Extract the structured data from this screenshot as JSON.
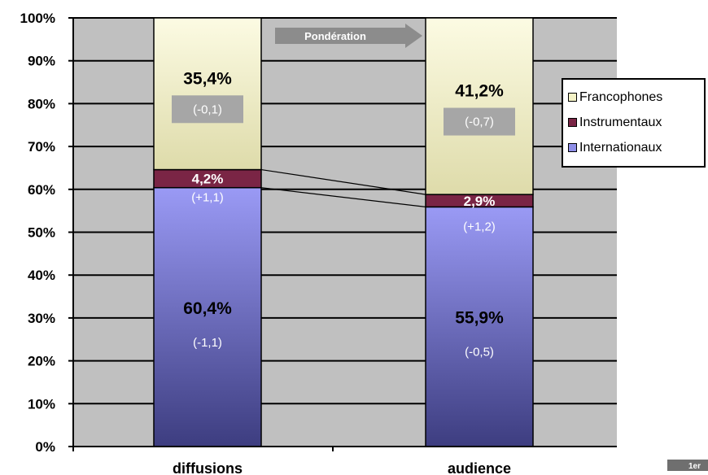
{
  "chart_data": {
    "type": "bar",
    "stacked": true,
    "categories": [
      "diffusions",
      "audience"
    ],
    "series": [
      {
        "name": "Internationaux",
        "values": [
          60.4,
          55.9
        ],
        "labels": [
          "60,4%",
          "55,9%"
        ],
        "changes": [
          "(-1,1)",
          "(-0,5)"
        ],
        "color": "#8f8fe8"
      },
      {
        "name": "Instrumentaux",
        "values": [
          4.2,
          2.9
        ],
        "labels": [
          "4,2%",
          "2,9%"
        ],
        "changes": [
          "(+1,1)",
          "(+1,2)"
        ],
        "color": "#7a2545"
      },
      {
        "name": "Francophones",
        "values": [
          35.4,
          41.2
        ],
        "labels": [
          "35,4%",
          "41,2%"
        ],
        "changes": [
          "(-0,1)",
          "(-0,7)"
        ],
        "color": "#f4f2c6"
      }
    ],
    "yticks": [
      "0%",
      "10%",
      "20%",
      "30%",
      "40%",
      "50%",
      "60%",
      "70%",
      "80%",
      "90%",
      "100%"
    ],
    "ylim": [
      0,
      100
    ],
    "grid": true,
    "legend": "right",
    "arrow_label": "Pondération",
    "colors": {
      "plot_bg": "#c0c0c0",
      "arrow": "#8c8c8c",
      "change_box": "#a6a6a6"
    }
  },
  "corner_tab": "1er"
}
